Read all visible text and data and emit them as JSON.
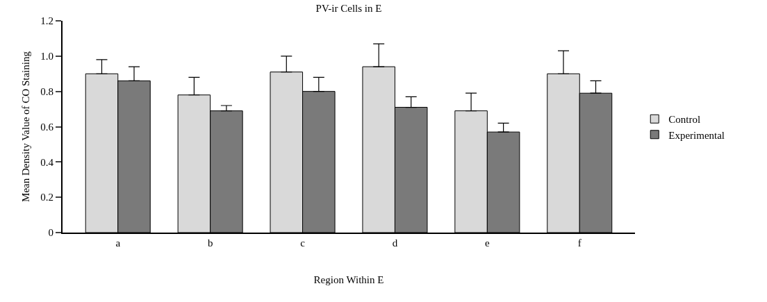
{
  "chart_data": {
    "type": "bar",
    "title": "PV-ir Cells in E",
    "xlabel": "Region Within E",
    "ylabel": "Mean Density Value of CO Staining",
    "categories": [
      "a",
      "b",
      "c",
      "d",
      "e",
      "f"
    ],
    "series": [
      {
        "name": "Control",
        "color": "#d9d9d9",
        "values": [
          0.9,
          0.78,
          0.91,
          0.94,
          0.69,
          0.9
        ],
        "errors": [
          0.08,
          0.1,
          0.09,
          0.13,
          0.1,
          0.13
        ]
      },
      {
        "name": "Experimental",
        "color": "#7a7a7a",
        "values": [
          0.86,
          0.69,
          0.8,
          0.71,
          0.57,
          0.79
        ],
        "errors": [
          0.08,
          0.03,
          0.08,
          0.06,
          0.05,
          0.07
        ]
      }
    ],
    "ylim": [
      0,
      1.2
    ],
    "yticks": [
      0,
      0.2,
      0.4,
      0.6,
      0.8,
      {
        "value": 1,
        "label": "1.0"
      },
      1.2
    ],
    "grid": false,
    "legend": "right"
  }
}
